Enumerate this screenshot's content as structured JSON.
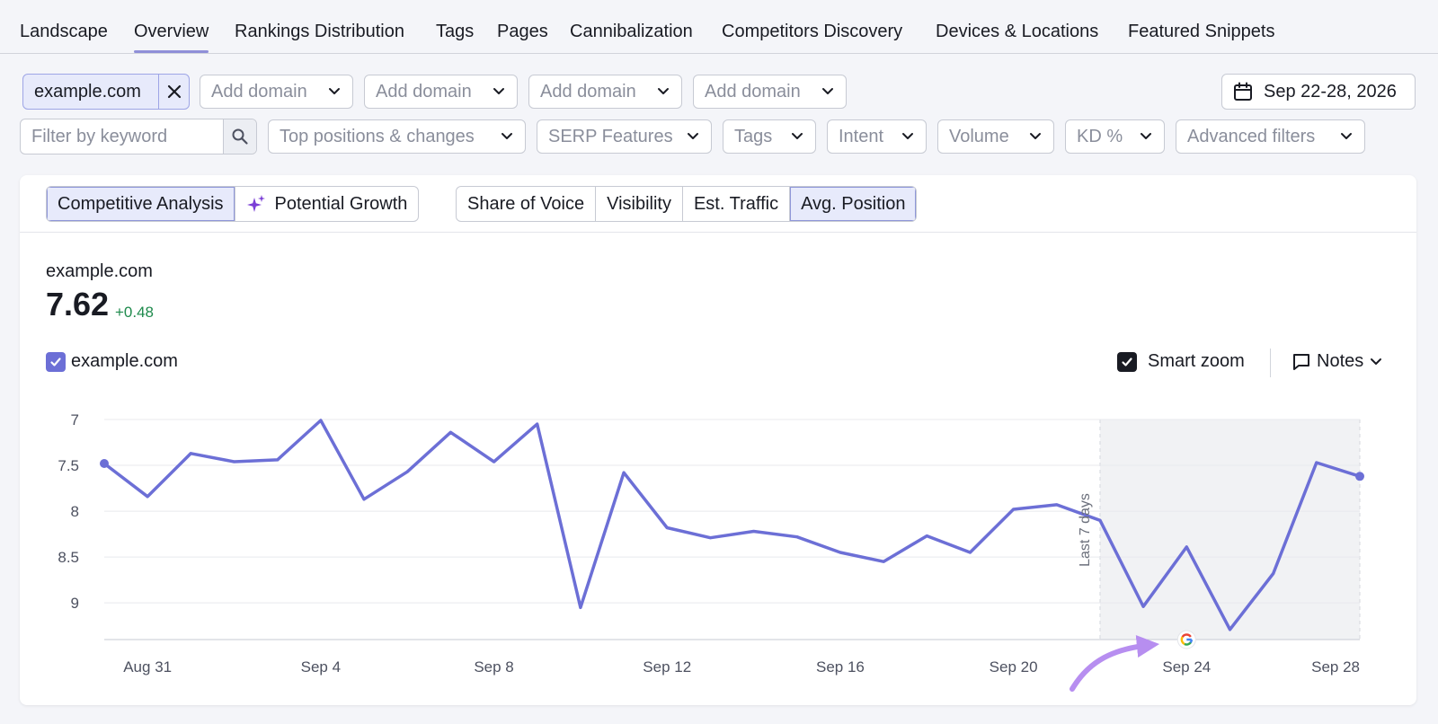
{
  "nav": {
    "tabs": [
      {
        "label": "Landscape"
      },
      {
        "label": "Overview"
      },
      {
        "label": "Rankings Distribution"
      },
      {
        "label": "Tags"
      },
      {
        "label": "Pages"
      },
      {
        "label": "Cannibalization"
      },
      {
        "label": "Competitors Discovery"
      },
      {
        "label": "Devices & Locations"
      },
      {
        "label": "Featured Snippets"
      }
    ],
    "active": "Overview"
  },
  "domains": {
    "primary": "example.com",
    "add_label": "Add domain"
  },
  "date_range": "Sep 22-28, 2026",
  "filters": {
    "keyword_placeholder": "Filter by keyword",
    "items": [
      {
        "label": "Top positions & changes"
      },
      {
        "label": "SERP Features"
      },
      {
        "label": "Tags"
      },
      {
        "label": "Intent"
      },
      {
        "label": "Volume"
      },
      {
        "label": "KD %"
      },
      {
        "label": "Advanced filters"
      }
    ]
  },
  "analysis_tabs": {
    "left": [
      {
        "label": "Competitive Analysis"
      },
      {
        "label": "Potential Growth"
      }
    ],
    "metrics": [
      {
        "label": "Share of Voice"
      },
      {
        "label": "Visibility"
      },
      {
        "label": "Est. Traffic"
      },
      {
        "label": "Avg. Position"
      }
    ],
    "selected_left": "Competitive Analysis",
    "selected_metric": "Avg. Position"
  },
  "kpi": {
    "domain": "example.com",
    "value": "7.62",
    "delta": "+0.48"
  },
  "legend": {
    "series_label": "example.com",
    "smart_zoom_label": "Smart zoom",
    "notes_label": "Notes"
  },
  "colors": {
    "series": "#6c6fd6",
    "accent": "#8f8fd8",
    "delta_positive": "#1e8a4c",
    "arrow": "#b78ef0"
  },
  "chart_data": {
    "type": "line",
    "ylim": [
      9.4,
      7
    ],
    "y_inverted": true,
    "yticks": [
      "7",
      "7.5",
      "8",
      "8.5",
      "9"
    ],
    "ytick_values": [
      7,
      7.5,
      8,
      8.5,
      9
    ],
    "x_tick_labels": [
      "Aug 31",
      "Sep 4",
      "Sep 8",
      "Sep 12",
      "Sep 16",
      "Sep 20",
      "Sep 24",
      "Sep 28"
    ],
    "x_tick_dates": [
      "Aug 31",
      "Sep 4",
      "Sep 8",
      "Sep 12",
      "Sep 16",
      "Sep 20",
      "Sep 24",
      "Sep 28"
    ],
    "x_start": "Aug 30",
    "x_end": "Sep 28",
    "highlight": {
      "from": "Sep 22",
      "to": "Sep 28",
      "label": "Last 7 days"
    },
    "series": [
      {
        "name": "example.com",
        "x": [
          "Aug 30",
          "Aug 31",
          "Sep 1",
          "Sep 2",
          "Sep 3",
          "Sep 4",
          "Sep 5",
          "Sep 6",
          "Sep 7",
          "Sep 8",
          "Sep 9",
          "Sep 10",
          "Sep 11",
          "Sep 12",
          "Sep 13",
          "Sep 14",
          "Sep 15",
          "Sep 16",
          "Sep 17",
          "Sep 18",
          "Sep 19",
          "Sep 20",
          "Sep 21",
          "Sep 22",
          "Sep 23",
          "Sep 24",
          "Sep 25",
          "Sep 26",
          "Sep 27",
          "Sep 28"
        ],
        "values": [
          7.48,
          7.84,
          7.37,
          7.46,
          7.44,
          7.01,
          7.87,
          7.57,
          7.14,
          7.46,
          7.05,
          9.05,
          7.58,
          8.18,
          8.29,
          8.22,
          8.28,
          8.45,
          8.55,
          8.27,
          8.45,
          7.98,
          7.93,
          8.1,
          9.04,
          8.39,
          9.29,
          8.68,
          7.47,
          7.62
        ]
      }
    ]
  }
}
